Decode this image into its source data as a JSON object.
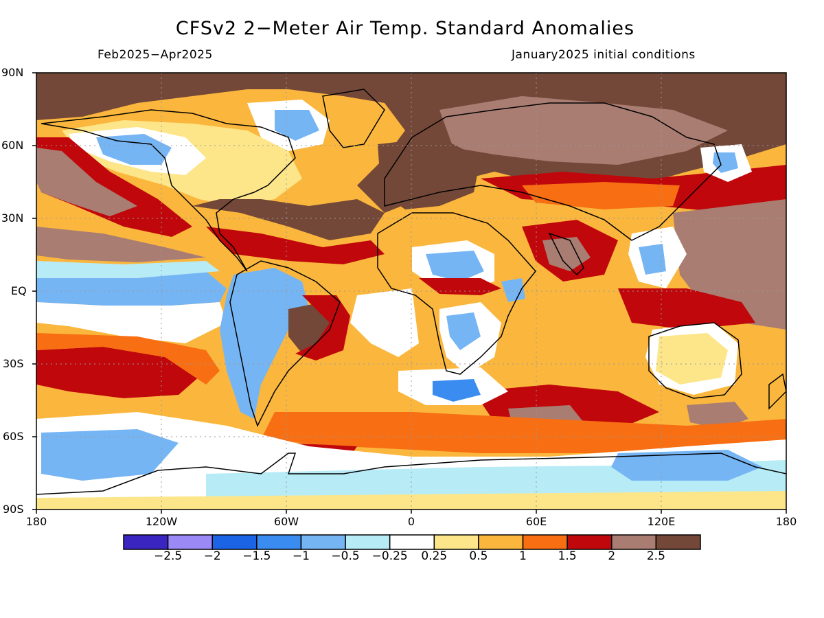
{
  "title": "CFSv2 2−Meter Air Temp. Standard Anomalies",
  "period": "Feb2025−Apr2025",
  "initial_conditions": "January2025 initial conditions",
  "lat_labels": [
    "90N",
    "60N",
    "30N",
    "EQ",
    "30S",
    "60S",
    "90S"
  ],
  "lon_labels": [
    "180",
    "120W",
    "60W",
    "0",
    "60E",
    "120E",
    "180"
  ],
  "colorbar": {
    "colors": [
      "#3b25c0",
      "#9b8af5",
      "#1c64e6",
      "#3a8cf0",
      "#76b5f4",
      "#b7ecf7",
      "#ffffff",
      "#fde68a",
      "#fbb73d",
      "#f76e13",
      "#c0070b",
      "#a97d72",
      "#744838"
    ],
    "labels": [
      "−2.5",
      "−2",
      "−1.5",
      "−1",
      "−0.5",
      "−0.25",
      "0.25",
      "0.5",
      "1",
      "1.5",
      "2",
      "2.5"
    ]
  },
  "colors": {
    "very_warm": "#744838",
    "warm": "#c0070b",
    "orange": "#f76e13",
    "light_orange": "#fbb73d",
    "yellow": "#fde68a",
    "neutral": "#ffffff",
    "light_blue": "#b7ecf7",
    "blue": "#76b5f4"
  }
}
